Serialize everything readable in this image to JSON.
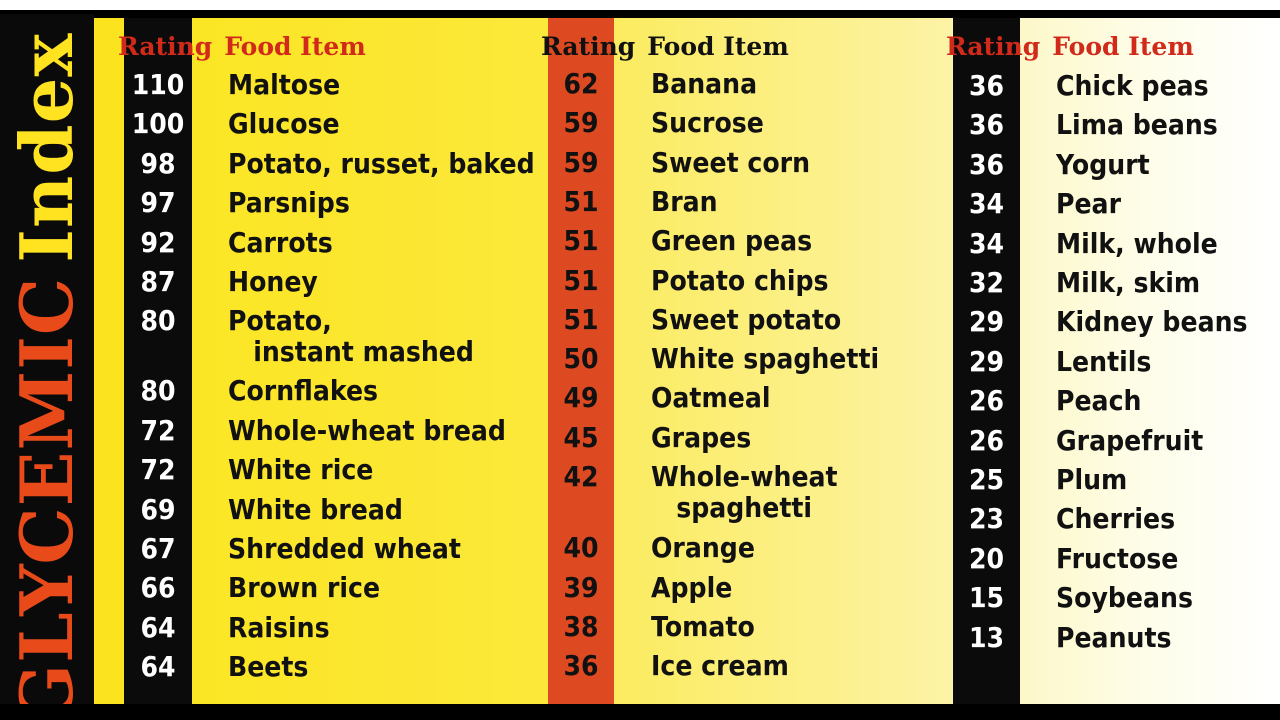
{
  "sidebar": {
    "title_part1": "GLYCEMIC",
    "title_part2": "Index"
  },
  "headers": {
    "rating": "Rating",
    "food": "Food Item"
  },
  "columns": [
    {
      "rows": [
        {
          "rating": "110",
          "food": "Maltose"
        },
        {
          "rating": "100",
          "food": "Glucose"
        },
        {
          "rating": "98",
          "food": "Potato, russet, baked"
        },
        {
          "rating": "97",
          "food": "Parsnips"
        },
        {
          "rating": "92",
          "food": "Carrots"
        },
        {
          "rating": "87",
          "food": "Honey"
        },
        {
          "rating": "80",
          "food": "Potato,",
          "food_line2": "instant mashed"
        },
        {
          "rating": "80",
          "food": "Cornflakes"
        },
        {
          "rating": "72",
          "food": "Whole-wheat bread"
        },
        {
          "rating": "72",
          "food": "White rice"
        },
        {
          "rating": "69",
          "food": "White bread"
        },
        {
          "rating": "67",
          "food": "Shredded wheat"
        },
        {
          "rating": "66",
          "food": "Brown rice"
        },
        {
          "rating": "64",
          "food": "Raisins"
        },
        {
          "rating": "64",
          "food": "Beets"
        }
      ]
    },
    {
      "rows": [
        {
          "rating": "62",
          "food": "Banana"
        },
        {
          "rating": "59",
          "food": "Sucrose"
        },
        {
          "rating": "59",
          "food": "Sweet corn"
        },
        {
          "rating": "51",
          "food": "Bran"
        },
        {
          "rating": "51",
          "food": "Green peas"
        },
        {
          "rating": "51",
          "food": "Potato chips"
        },
        {
          "rating": "51",
          "food": "Sweet potato"
        },
        {
          "rating": "50",
          "food": "White spaghetti"
        },
        {
          "rating": "49",
          "food": "Oatmeal"
        },
        {
          "rating": "45",
          "food": "Grapes"
        },
        {
          "rating": "42",
          "food": "Whole-wheat",
          "food_line2": "spaghetti"
        },
        {
          "rating": "40",
          "food": "Orange"
        },
        {
          "rating": "39",
          "food": "Apple"
        },
        {
          "rating": "38",
          "food": "Tomato"
        },
        {
          "rating": "36",
          "food": "Ice cream"
        }
      ]
    },
    {
      "rows": [
        {
          "rating": "36",
          "food": "Chick peas"
        },
        {
          "rating": "36",
          "food": "Lima beans"
        },
        {
          "rating": "36",
          "food": "Yogurt"
        },
        {
          "rating": "34",
          "food": "Pear"
        },
        {
          "rating": "34",
          "food": "Milk, whole"
        },
        {
          "rating": "32",
          "food": "Milk, skim"
        },
        {
          "rating": "29",
          "food": "Kidney beans"
        },
        {
          "rating": "29",
          "food": "Lentils"
        },
        {
          "rating": "26",
          "food": "Peach"
        },
        {
          "rating": "26",
          "food": "Grapefruit"
        },
        {
          "rating": "25",
          "food": "Plum"
        },
        {
          "rating": "23",
          "food": "Cherries"
        },
        {
          "rating": "20",
          "food": "Fructose"
        },
        {
          "rating": "15",
          "food": "Soybeans"
        },
        {
          "rating": "13",
          "food": "Peanuts"
        }
      ]
    }
  ]
}
